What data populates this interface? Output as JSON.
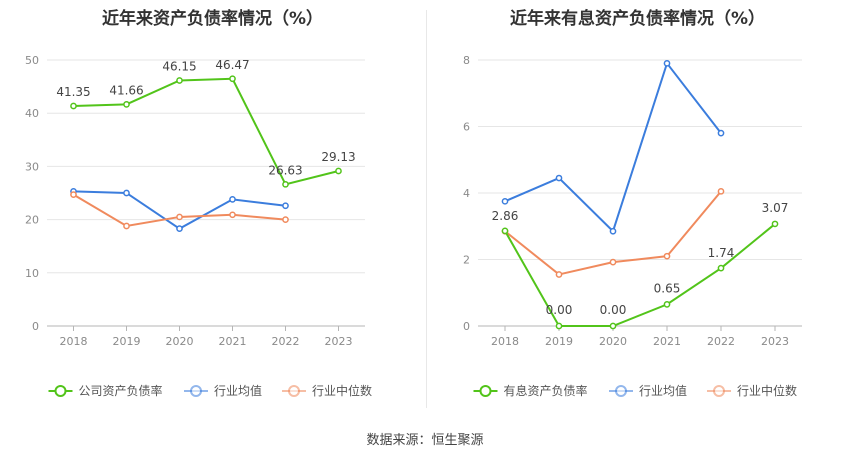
{
  "footer": {
    "source_label": "数据来源：恒生聚源"
  },
  "chart_data": [
    {
      "type": "line",
      "title": "近年来资产负债率情况（%）",
      "categories": [
        "2018",
        "2019",
        "2020",
        "2021",
        "2022",
        "2023"
      ],
      "ylim": [
        0,
        50
      ],
      "yticks": [
        0,
        10,
        20,
        30,
        40,
        50
      ],
      "grid": true,
      "legend_position": "bottom",
      "series": [
        {
          "name": "公司资产负债率",
          "color": "#52c41a",
          "values": [
            41.35,
            41.66,
            46.15,
            46.47,
            26.63,
            29.13
          ],
          "labels": [
            "41.35",
            "41.66",
            "46.15",
            "46.47",
            "26.63",
            "29.13"
          ]
        },
        {
          "name": "行业均值",
          "color": "#3b7ddd",
          "values": [
            25.3,
            25.0,
            18.3,
            23.8,
            22.6,
            null
          ]
        },
        {
          "name": "行业中位数",
          "color": "#f08a5d",
          "values": [
            24.7,
            18.8,
            20.5,
            20.9,
            20.0,
            null
          ]
        }
      ]
    },
    {
      "type": "line",
      "title": "近年来有息资产负债率情况（%）",
      "categories": [
        "2018",
        "2019",
        "2020",
        "2021",
        "2022",
        "2023"
      ],
      "ylim": [
        0,
        8
      ],
      "yticks": [
        0,
        2,
        4,
        6,
        8
      ],
      "grid": true,
      "legend_position": "bottom",
      "series": [
        {
          "name": "有息资产负债率",
          "color": "#52c41a",
          "values": [
            2.86,
            0.0,
            0.0,
            0.65,
            1.74,
            3.07
          ],
          "labels": [
            "2.86",
            "0.00",
            "0.00",
            "0.65",
            "1.74",
            "3.07"
          ]
        },
        {
          "name": "行业均值",
          "color": "#3b7ddd",
          "values": [
            3.75,
            4.45,
            2.85,
            7.9,
            5.8,
            null
          ]
        },
        {
          "name": "行业中位数",
          "color": "#f08a5d",
          "values": [
            2.85,
            1.55,
            1.92,
            2.1,
            4.05,
            null
          ]
        }
      ]
    }
  ]
}
